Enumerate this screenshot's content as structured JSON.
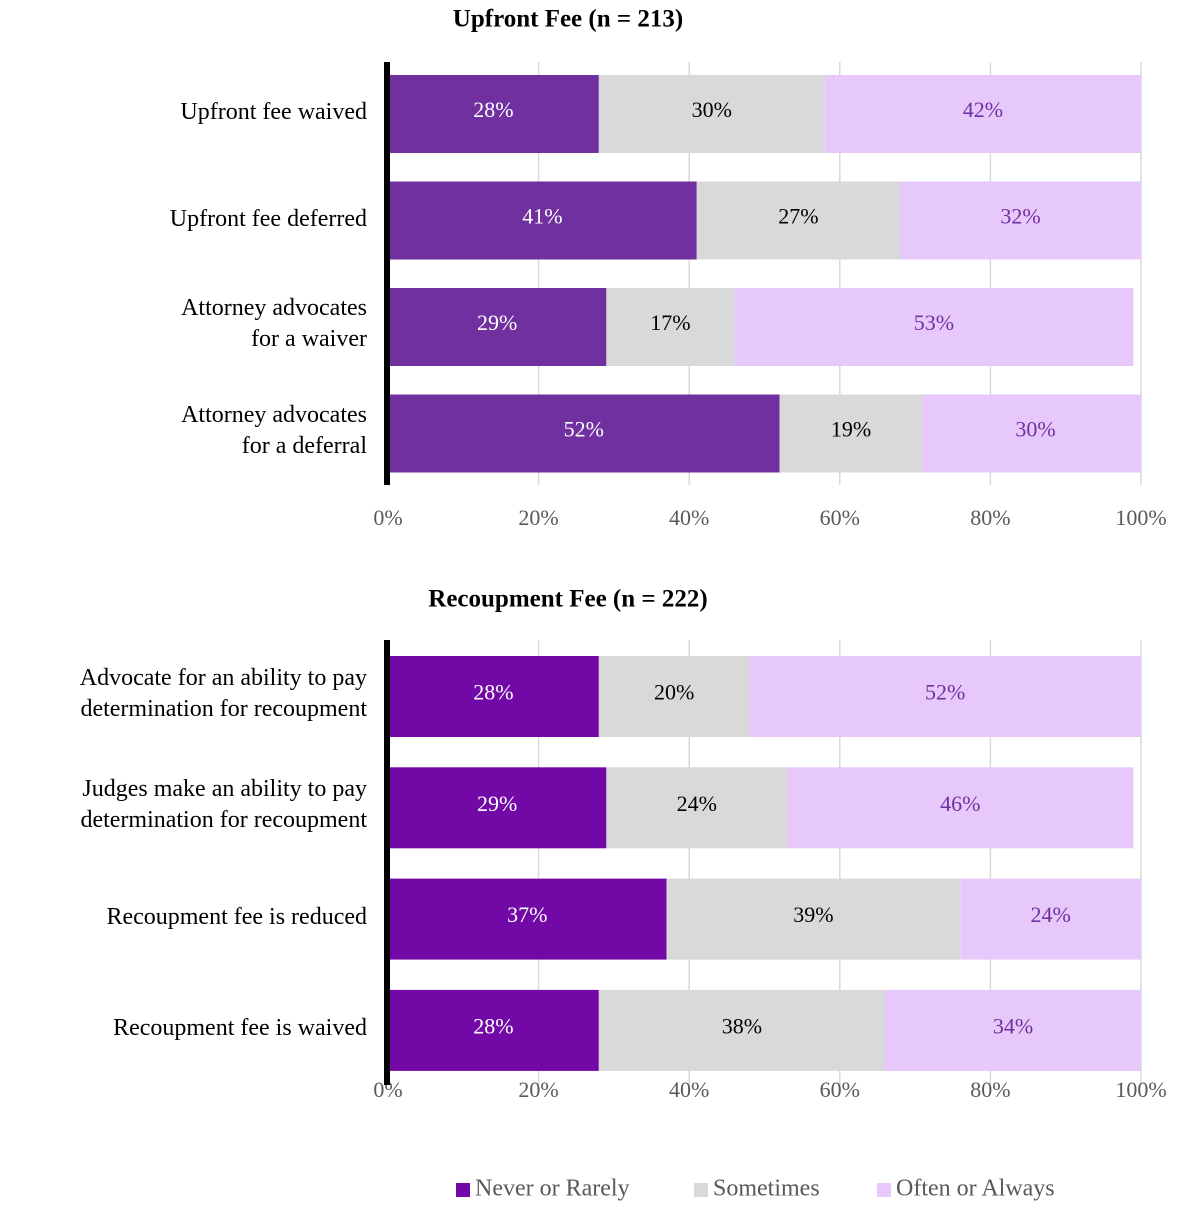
{
  "chart_data": [
    {
      "type": "stacked_bar_horizontal",
      "title": "Upfront Fee (n = 213)",
      "categories": [
        "Upfront fee waived",
        "Upfront fee deferred",
        "Attorney advocates\nfor a waiver",
        "Attorney advocates\nfor a deferral"
      ],
      "series": [
        {
          "color": "#7030a0",
          "label_color": "#ffffff",
          "values": [
            28,
            41,
            29,
            52
          ],
          "value_labels": [
            "28%",
            "41%",
            "29%",
            "52%"
          ]
        },
        {
          "color": "#d9d9d9",
          "label_color": "#000000",
          "values": [
            30,
            27,
            17,
            19
          ],
          "value_labels": [
            "30%",
            "27%",
            "17%",
            "19%"
          ]
        },
        {
          "color": "#e6c8fa",
          "label_color": "#7030a0",
          "values": [
            42,
            32,
            53,
            30
          ],
          "value_labels": [
            "42%",
            "32%",
            "53%",
            "30%"
          ]
        }
      ],
      "xlim": [
        0,
        100
      ],
      "xticks": [
        {
          "value": 0,
          "label": "0%"
        },
        {
          "value": 20,
          "label": "20%"
        },
        {
          "value": 40,
          "label": "40%"
        },
        {
          "value": 60,
          "label": "60%"
        },
        {
          "value": 80,
          "label": "80%"
        },
        {
          "value": 100,
          "label": "100%"
        }
      ],
      "grid": true
    },
    {
      "type": "stacked_bar_horizontal",
      "title": "Recoupment Fee (n = 222)",
      "categories": [
        "Advocate for an ability to pay\ndetermination for recoupment",
        "Judges make an ability to pay\ndetermination for recoupment",
        "Recoupment fee is reduced",
        "Recoupment fee is waived"
      ],
      "series": [
        {
          "name": "Never or Rarely",
          "color": "#7209a7",
          "label_color": "#ffffff",
          "values": [
            28,
            29,
            37,
            28
          ],
          "value_labels": [
            "28%",
            "29%",
            "37%",
            "28%"
          ]
        },
        {
          "name": "Sometimes",
          "color": "#d9d9d9",
          "label_color": "#000000",
          "values": [
            20,
            24,
            39,
            38
          ],
          "value_labels": [
            "20%",
            "24%",
            "39%",
            "38%"
          ]
        },
        {
          "name": "Often or Always",
          "color": "#e6c8fa",
          "label_color": "#7030a0",
          "values": [
            52,
            46,
            24,
            34
          ],
          "value_labels": [
            "52%",
            "46%",
            "24%",
            "34%"
          ]
        }
      ],
      "xlim": [
        0,
        100
      ],
      "xticks": [
        {
          "value": 0,
          "label": "0%"
        },
        {
          "value": 20,
          "label": "20%"
        },
        {
          "value": 40,
          "label": "40%"
        },
        {
          "value": 60,
          "label": "60%"
        },
        {
          "value": 80,
          "label": "80%"
        },
        {
          "value": 100,
          "label": "100%"
        }
      ],
      "grid": true,
      "legend": "bottom"
    }
  ]
}
